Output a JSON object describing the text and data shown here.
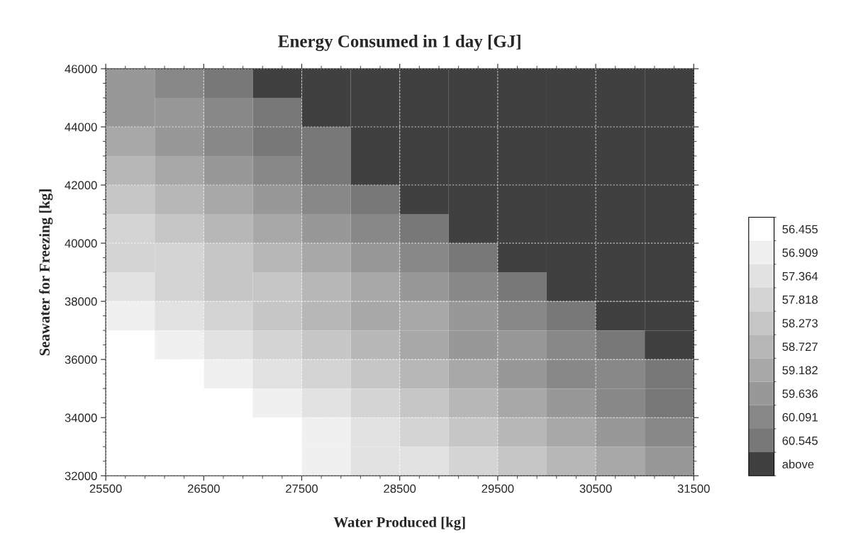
{
  "chart_data": {
    "type": "heatmap",
    "title": "Energy Consumed in 1 day [GJ]",
    "xlabel": "Water Produced [kg]",
    "ylabel": "Seawater for Freezing [kg]",
    "x": [
      25750,
      26250,
      26750,
      27250,
      27750,
      28250,
      28750,
      29250,
      29750,
      30250,
      30750,
      31250
    ],
    "y": [
      45500,
      44500,
      43500,
      42500,
      41500,
      40500,
      39500,
      38500,
      37500,
      36500,
      35500,
      34500,
      33500,
      32500
    ],
    "cells": [
      [
        59.636,
        60.091,
        60.545,
        61.0,
        61.0,
        61.0,
        61.0,
        61.0,
        61.0,
        61.0,
        61.0,
        61.0
      ],
      [
        59.636,
        59.636,
        60.091,
        60.545,
        61.0,
        61.0,
        61.0,
        61.0,
        61.0,
        61.0,
        61.0,
        61.0
      ],
      [
        59.182,
        59.636,
        60.091,
        60.545,
        60.545,
        61.0,
        61.0,
        61.0,
        61.0,
        61.0,
        61.0,
        61.0
      ],
      [
        58.727,
        59.182,
        59.636,
        60.091,
        60.545,
        61.0,
        61.0,
        61.0,
        61.0,
        61.0,
        61.0,
        61.0
      ],
      [
        58.273,
        58.727,
        59.182,
        59.636,
        60.091,
        60.545,
        61.0,
        61.0,
        61.0,
        61.0,
        61.0,
        61.0
      ],
      [
        57.818,
        58.273,
        58.727,
        59.182,
        59.636,
        60.091,
        60.545,
        61.0,
        61.0,
        61.0,
        61.0,
        61.0
      ],
      [
        57.818,
        57.818,
        58.273,
        58.727,
        59.182,
        59.636,
        60.091,
        60.545,
        61.0,
        61.0,
        61.0,
        61.0
      ],
      [
        57.364,
        57.818,
        58.273,
        58.273,
        58.727,
        59.182,
        59.636,
        60.091,
        60.545,
        61.0,
        61.0,
        61.0
      ],
      [
        56.909,
        57.364,
        57.818,
        58.273,
        58.727,
        59.182,
        59.182,
        59.636,
        60.091,
        60.545,
        61.0,
        61.0
      ],
      [
        56.455,
        56.909,
        57.364,
        57.818,
        58.273,
        58.727,
        59.182,
        59.636,
        59.636,
        60.091,
        60.545,
        61.0
      ],
      [
        56.455,
        56.455,
        56.909,
        57.364,
        57.818,
        58.273,
        58.727,
        59.182,
        59.636,
        60.091,
        60.091,
        60.545
      ],
      [
        56.455,
        56.455,
        56.455,
        56.909,
        57.364,
        57.818,
        58.273,
        58.727,
        59.182,
        59.636,
        60.091,
        60.545
      ],
      [
        56.455,
        56.455,
        56.455,
        56.455,
        56.909,
        57.364,
        57.818,
        58.273,
        58.727,
        59.182,
        59.636,
        60.091
      ],
      [
        56.455,
        56.455,
        56.455,
        56.455,
        56.909,
        57.364,
        57.364,
        57.818,
        58.273,
        58.727,
        59.182,
        59.636
      ]
    ],
    "cticks": [
      56.455,
      56.909,
      57.364,
      57.818,
      58.273,
      58.727,
      59.182,
      59.636,
      60.091,
      60.545,
      {
        "value": 61.0,
        "label": "above"
      }
    ],
    "colors": [
      "#ffffff",
      "#f0f0f0",
      "#e2e2e2",
      "#d4d4d4",
      "#c6c6c6",
      "#b7b7b7",
      "#a8a8a8",
      "#989898",
      "#888888",
      "#787878",
      "#404040"
    ],
    "xlim": [
      25500,
      31500
    ],
    "ylim": [
      32000,
      46000
    ],
    "xticks": [
      25500,
      26500,
      27500,
      28500,
      29500,
      30500,
      31500
    ],
    "yticks": [
      32000,
      34000,
      36000,
      38000,
      40000,
      42000,
      44000,
      46000
    ],
    "grid": true
  }
}
